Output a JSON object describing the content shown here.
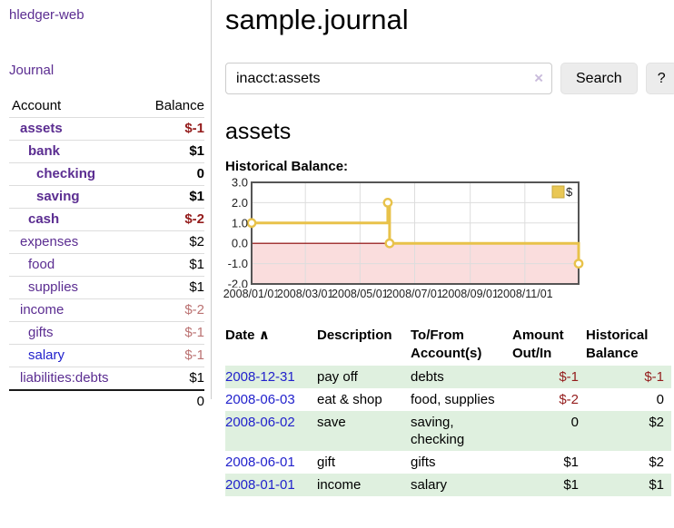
{
  "sidebar": {
    "app_title": "hledger-web",
    "journal_link": "Journal",
    "table": {
      "account_header": "Account",
      "balance_header": "Balance",
      "rows": [
        {
          "name": "assets",
          "indent": 1,
          "bold": true,
          "balance": "$-1",
          "tone": "neg-strong",
          "link": "purple"
        },
        {
          "name": "bank",
          "indent": 2,
          "bold": true,
          "balance": "$1",
          "tone": "",
          "link": "purple"
        },
        {
          "name": "checking",
          "indent": 3,
          "bold": true,
          "balance": "0",
          "tone": "",
          "link": "purple"
        },
        {
          "name": "saving",
          "indent": 3,
          "bold": true,
          "balance": "$1",
          "tone": "",
          "link": "purple"
        },
        {
          "name": "cash",
          "indent": 2,
          "bold": true,
          "balance": "$-2",
          "tone": "neg-strong",
          "link": "purple"
        },
        {
          "name": "expenses",
          "indent": 1,
          "bold": false,
          "balance": "$2",
          "tone": "",
          "link": "purple"
        },
        {
          "name": "food",
          "indent": 2,
          "bold": false,
          "balance": "$1",
          "tone": "",
          "link": "purple"
        },
        {
          "name": "supplies",
          "indent": 2,
          "bold": false,
          "balance": "$1",
          "tone": "",
          "link": "purple"
        },
        {
          "name": "income",
          "indent": 1,
          "bold": false,
          "balance": "$-2",
          "tone": "neg-soft",
          "link": "purple"
        },
        {
          "name": "gifts",
          "indent": 2,
          "bold": false,
          "balance": "$-1",
          "tone": "neg-soft",
          "link": "purple"
        },
        {
          "name": "salary",
          "indent": 2,
          "bold": false,
          "balance": "$-1",
          "tone": "neg-soft",
          "link": "blue"
        },
        {
          "name": "liabilities:debts",
          "indent": 1,
          "bold": false,
          "balance": "$1",
          "tone": "",
          "link": "purple"
        }
      ],
      "total": "0"
    }
  },
  "main": {
    "title": "sample.journal",
    "search": {
      "value": "inacct:assets",
      "clear_icon": "×",
      "button": "Search",
      "help_button": "?"
    },
    "account_heading": "assets",
    "chart_heading": "Historical Balance:"
  },
  "chart_data": {
    "type": "line",
    "title": "Historical Balance",
    "step": "after",
    "x_domain": [
      "2008-01-01",
      "2008-12-31"
    ],
    "x_ticks": [
      "2008/01/01",
      "2008/03/01",
      "2008/05/01",
      "2008/07/01",
      "2008/09/01",
      "2008/11/01"
    ],
    "y_ticks": [
      "3.0",
      "2.0",
      "1.0",
      "0.0",
      "-1.0",
      "-2.0"
    ],
    "ylim": [
      -2,
      3
    ],
    "grid": true,
    "legend": {
      "label": "$",
      "position": "top-right"
    },
    "series": [
      {
        "name": "$",
        "color": "#e8c24a",
        "points": [
          {
            "date": "2008-01-01",
            "value": 1
          },
          {
            "date": "2008-06-01",
            "value": 2
          },
          {
            "date": "2008-06-03",
            "value": 0
          },
          {
            "date": "2008-12-31",
            "value": -1
          }
        ]
      }
    ],
    "negative_region_color": "#fadddd",
    "zero_line_color": "#8b0000",
    "border_color": "#555555",
    "gridline_color": "#dddddd"
  },
  "register": {
    "headers": {
      "date": "Date",
      "sort_icon": "∧",
      "description": "Description",
      "accounts_l1": "To/From",
      "accounts_l2": "Account(s)",
      "amount_l1": "Amount",
      "amount_l2": "Out/In",
      "balance_l1": "Historical",
      "balance_l2": "Balance"
    },
    "rows": [
      {
        "date": "2008-12-31",
        "description": "pay off",
        "accounts": "debts",
        "amount": "$-1",
        "amount_neg": true,
        "balance": "$-1",
        "balance_neg": true
      },
      {
        "date": "2008-06-03",
        "description": "eat & shop",
        "accounts": "food, supplies",
        "amount": "$-2",
        "amount_neg": true,
        "balance": "0",
        "balance_neg": false
      },
      {
        "date": "2008-06-02",
        "description": "save",
        "accounts": "saving, checking",
        "amount": "0",
        "amount_neg": false,
        "balance": "$2",
        "balance_neg": false
      },
      {
        "date": "2008-06-01",
        "description": "gift",
        "accounts": "gifts",
        "amount": "$1",
        "amount_neg": false,
        "balance": "$2",
        "balance_neg": false
      },
      {
        "date": "2008-01-01",
        "description": "income",
        "accounts": "salary",
        "amount": "$1",
        "amount_neg": false,
        "balance": "$1",
        "balance_neg": false
      }
    ]
  },
  "colors": {
    "link_purple": "#5b2d91",
    "link_blue": "#2222cc",
    "negative_strong": "#941c1c",
    "negative_soft": "#bb7272",
    "row_stripe_green": "#dff0df",
    "button_background": "#ececec",
    "series_yellow": "#e8c24a"
  }
}
